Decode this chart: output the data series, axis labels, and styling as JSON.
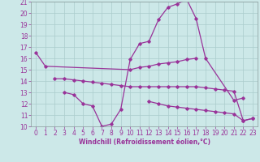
{
  "xlabel": "Windchill (Refroidissement éolien,°C)",
  "line_color": "#993399",
  "bg_color": "#cce8e8",
  "grid_color": "#aacccc",
  "ylim": [
    10,
    21
  ],
  "xlim": [
    -0.5,
    23.5
  ],
  "yticks": [
    10,
    11,
    12,
    13,
    14,
    15,
    16,
    17,
    18,
    19,
    20,
    21
  ],
  "xticks": [
    0,
    1,
    2,
    3,
    4,
    5,
    6,
    7,
    8,
    9,
    10,
    11,
    12,
    13,
    14,
    15,
    16,
    17,
    18,
    19,
    20,
    21,
    22,
    23
  ],
  "line1_x": [
    0,
    1,
    10,
    11,
    12,
    13,
    14,
    15,
    16,
    17
  ],
  "line1_y": [
    16.5,
    15.3,
    15.0,
    15.2,
    15.3,
    15.5,
    15.6,
    15.7,
    15.9,
    16.0
  ],
  "line2_x": [
    2,
    3,
    4,
    5,
    6,
    7,
    8,
    9,
    10,
    11,
    12,
    13,
    14,
    15,
    16,
    17,
    18,
    19,
    20,
    21,
    22,
    23
  ],
  "line2_y": [
    14.2,
    14.2,
    14.1,
    14.0,
    13.9,
    13.8,
    13.7,
    13.6,
    13.5,
    13.5,
    13.5,
    13.5,
    13.5,
    13.5,
    13.5,
    13.5,
    13.4,
    13.3,
    13.2,
    13.1,
    10.5,
    10.7
  ],
  "line3_x": [
    3,
    4,
    5,
    6,
    7,
    8,
    9,
    10,
    11,
    12,
    13,
    14,
    15,
    16,
    17,
    18,
    21,
    22
  ],
  "line3_y": [
    13.0,
    12.8,
    12.0,
    11.8,
    10.0,
    10.2,
    11.5,
    15.9,
    17.3,
    17.5,
    19.4,
    20.5,
    20.8,
    21.2,
    19.5,
    16.0,
    12.3,
    12.5
  ],
  "line4_x": [
    12,
    13,
    14,
    15,
    16,
    17,
    18,
    19,
    20,
    21,
    22,
    23
  ],
  "line4_y": [
    12.2,
    12.0,
    11.8,
    11.7,
    11.6,
    11.5,
    11.4,
    11.3,
    11.2,
    11.1,
    10.5,
    10.7
  ],
  "tick_fontsize": 5.5,
  "xlabel_fontsize": 5.5
}
